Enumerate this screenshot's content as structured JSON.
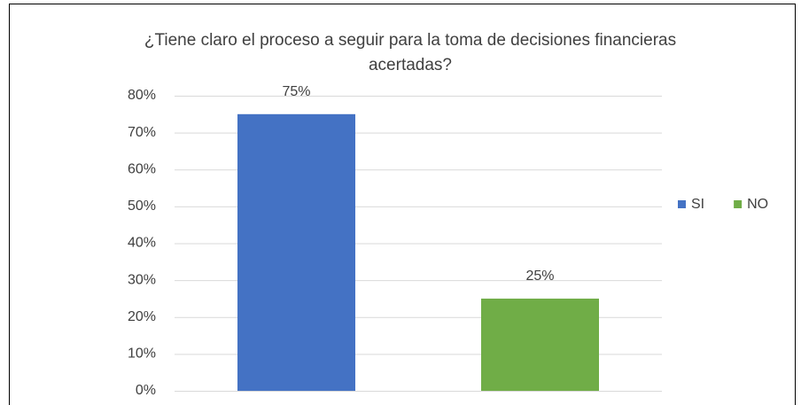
{
  "chart_data": {
    "type": "bar",
    "title": "¿Tiene claro el proceso a seguir para la toma de decisiones financieras acertadas?",
    "categories": [
      null
    ],
    "series": [
      {
        "name": "SI",
        "color": "#4472c4",
        "values": [
          75
        ],
        "value_labels": [
          "75%"
        ]
      },
      {
        "name": "NO",
        "color": "#70ad47",
        "values": [
          25
        ],
        "value_labels": [
          "25%"
        ]
      }
    ],
    "ylim": [
      0,
      80
    ],
    "yticks": [
      {
        "value": 0,
        "label": "0%"
      },
      {
        "value": 10,
        "label": "10%"
      },
      {
        "value": 20,
        "label": "20%"
      },
      {
        "value": 30,
        "label": "30%"
      },
      {
        "value": 40,
        "label": "40%"
      },
      {
        "value": 50,
        "label": "50%"
      },
      {
        "value": 60,
        "label": "60%"
      },
      {
        "value": 70,
        "label": "70%"
      },
      {
        "value": 80,
        "label": "80%"
      }
    ],
    "grid": true,
    "legend": "right"
  }
}
